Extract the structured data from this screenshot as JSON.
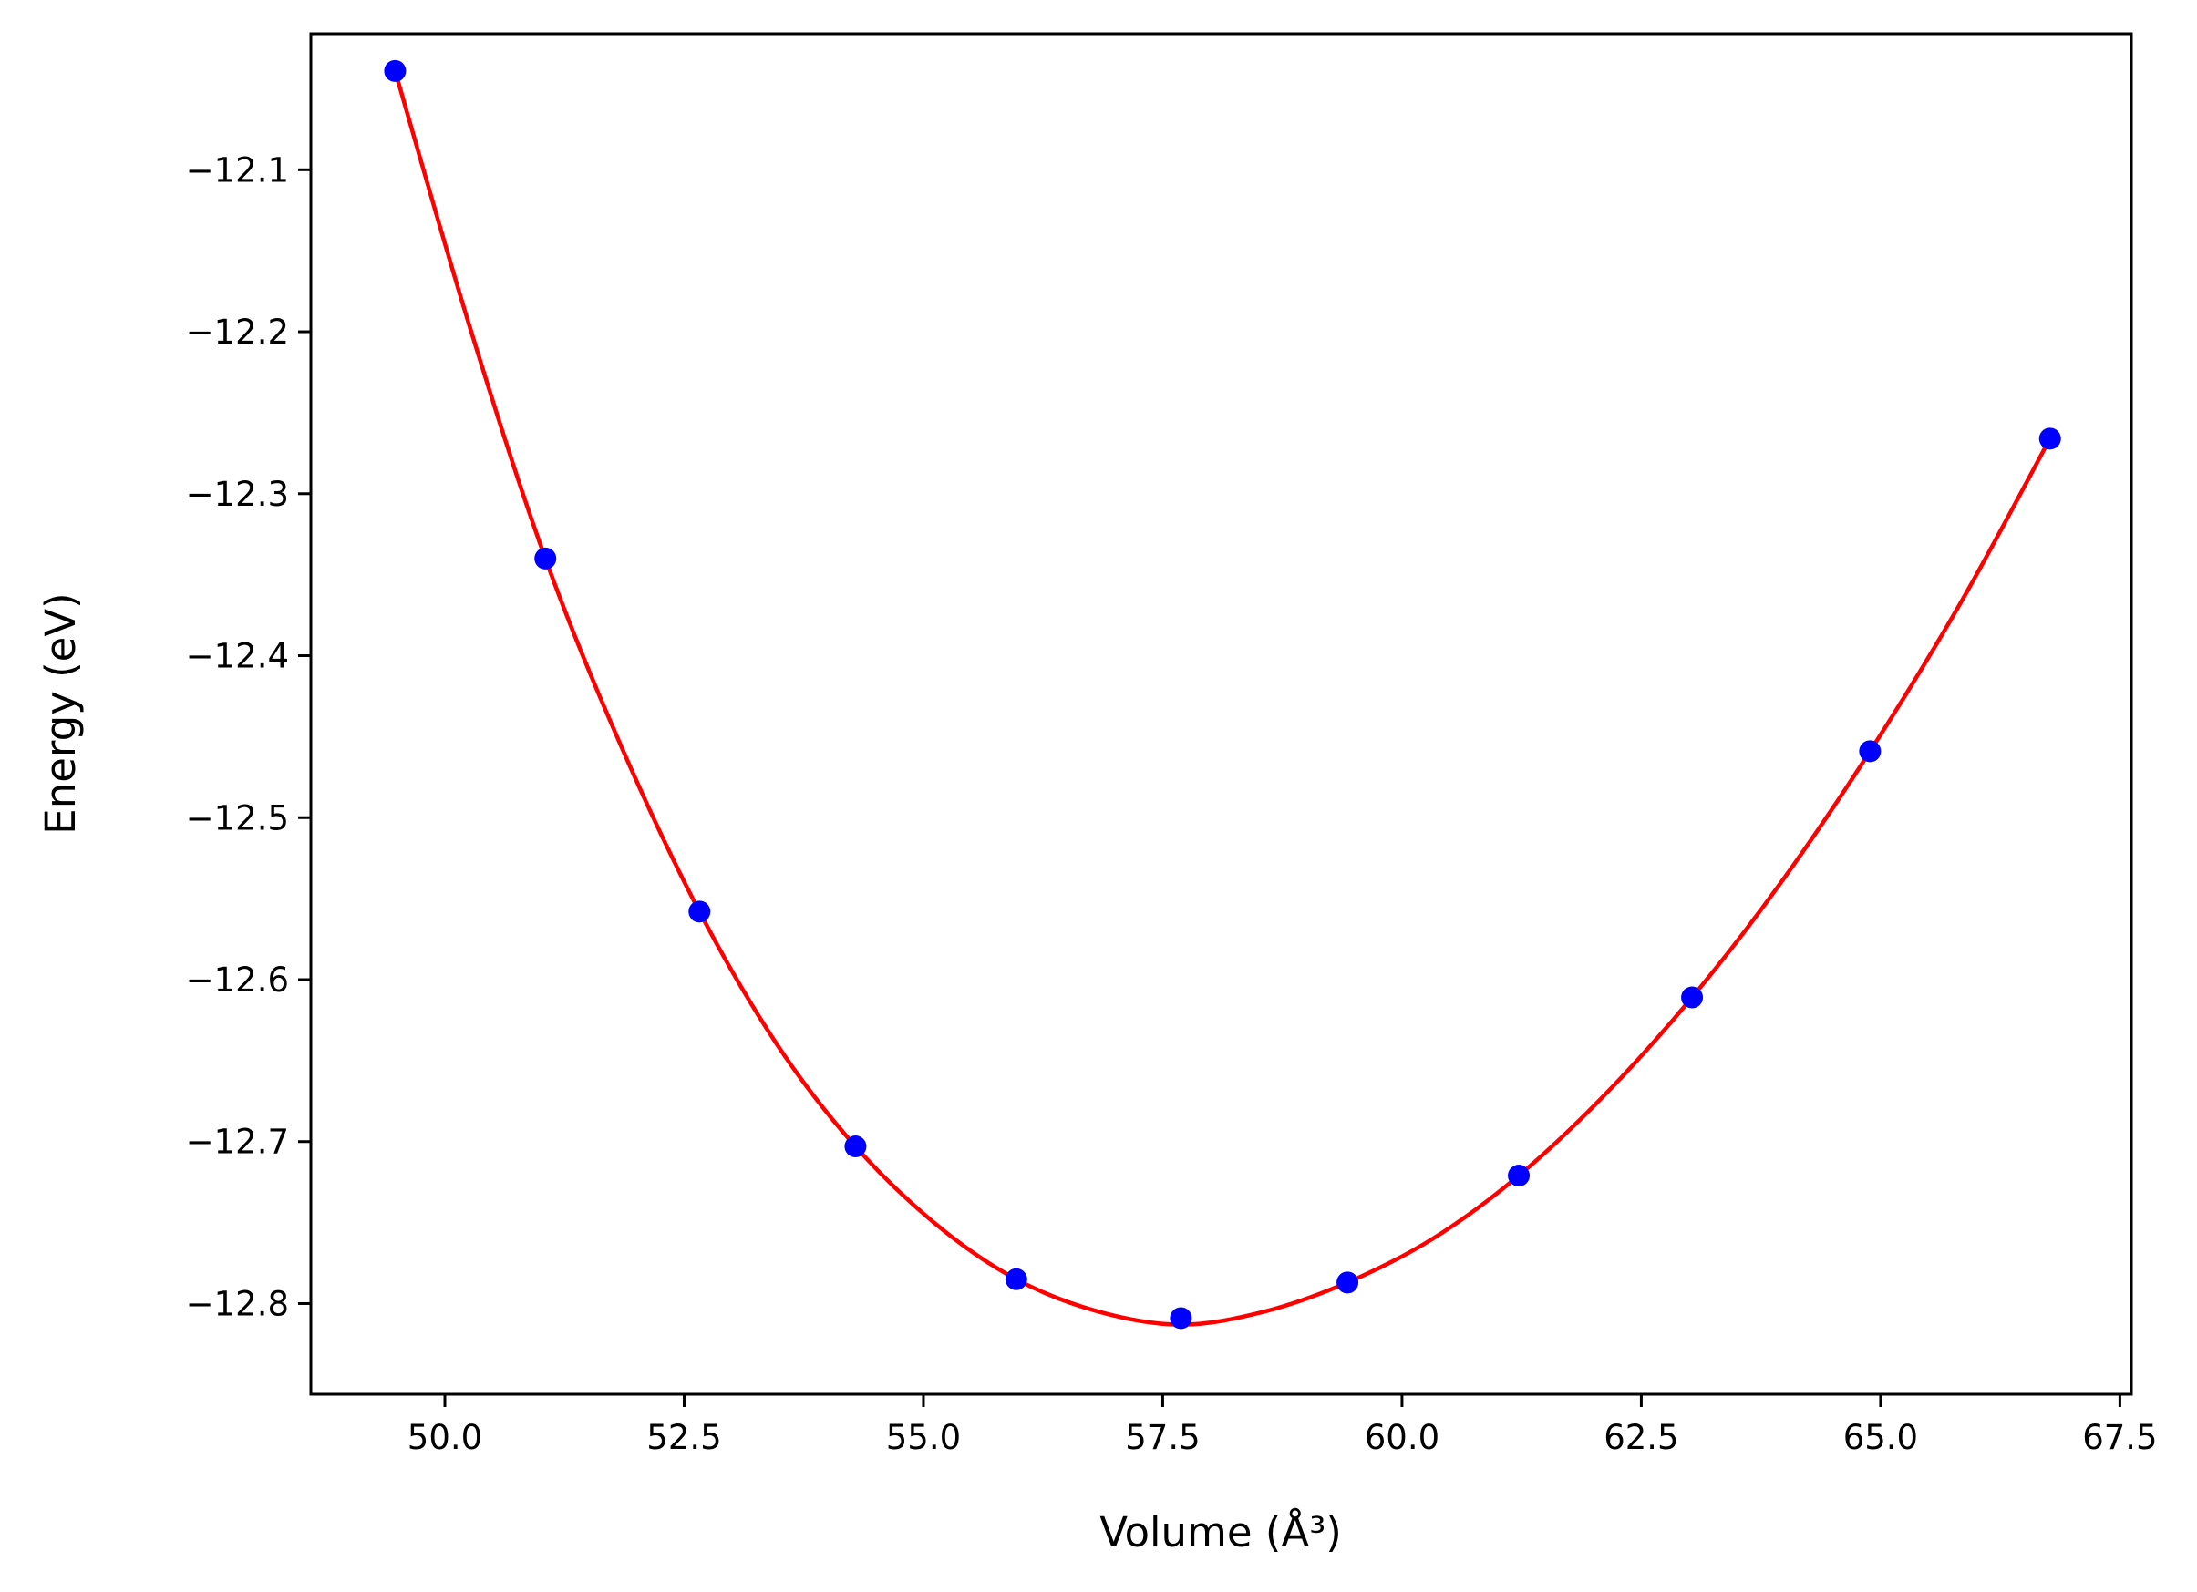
{
  "chart_data": {
    "type": "line",
    "xlabel": "Volume (Å³)",
    "ylabel": "Energy (eV)",
    "xlim": [
      48.6,
      67.62
    ],
    "ylim": [
      -12.856,
      -12.016
    ],
    "grid": false,
    "x_ticks": [
      50.0,
      52.5,
      55.0,
      57.5,
      60.0,
      62.5,
      65.0,
      67.5
    ],
    "x_tick_labels": [
      "50.0",
      "52.5",
      "55.0",
      "57.5",
      "60.0",
      "62.5",
      "65.0",
      "67.5"
    ],
    "y_ticks": [
      -12.1,
      -12.2,
      -12.3,
      -12.4,
      -12.5,
      -12.6,
      -12.7,
      -12.8
    ],
    "y_tick_labels": [
      "−12.1",
      "−12.2",
      "−12.3",
      "−12.4",
      "−12.5",
      "−12.6",
      "−12.7",
      "−12.8"
    ],
    "series": [
      {
        "kind": "scatter",
        "color": "#0000ff",
        "x": [
          49.48,
          51.05,
          52.66,
          54.29,
          55.97,
          57.69,
          59.43,
          61.22,
          63.03,
          64.89,
          66.77
        ],
        "y": [
          -12.039,
          -12.34,
          -12.558,
          -12.703,
          -12.785,
          -12.809,
          -12.787,
          -12.721,
          -12.611,
          -12.459,
          -12.266
        ]
      },
      {
        "kind": "fit-curve",
        "color": "#ff0000",
        "x": [
          49.48,
          50.26,
          51.05,
          51.85,
          52.66,
          53.47,
          54.29,
          55.13,
          55.97,
          56.83,
          57.69,
          58.56,
          59.43,
          60.32,
          61.22,
          62.12,
          63.03,
          63.96,
          64.89,
          65.83,
          66.77
        ],
        "y": [
          -12.039,
          -12.197,
          -12.34,
          -12.457,
          -12.558,
          -12.64,
          -12.703,
          -12.751,
          -12.785,
          -12.805,
          -12.813,
          -12.805,
          -12.787,
          -12.76,
          -12.721,
          -12.671,
          -12.611,
          -12.54,
          -12.459,
          -12.368,
          -12.266
        ]
      }
    ]
  }
}
